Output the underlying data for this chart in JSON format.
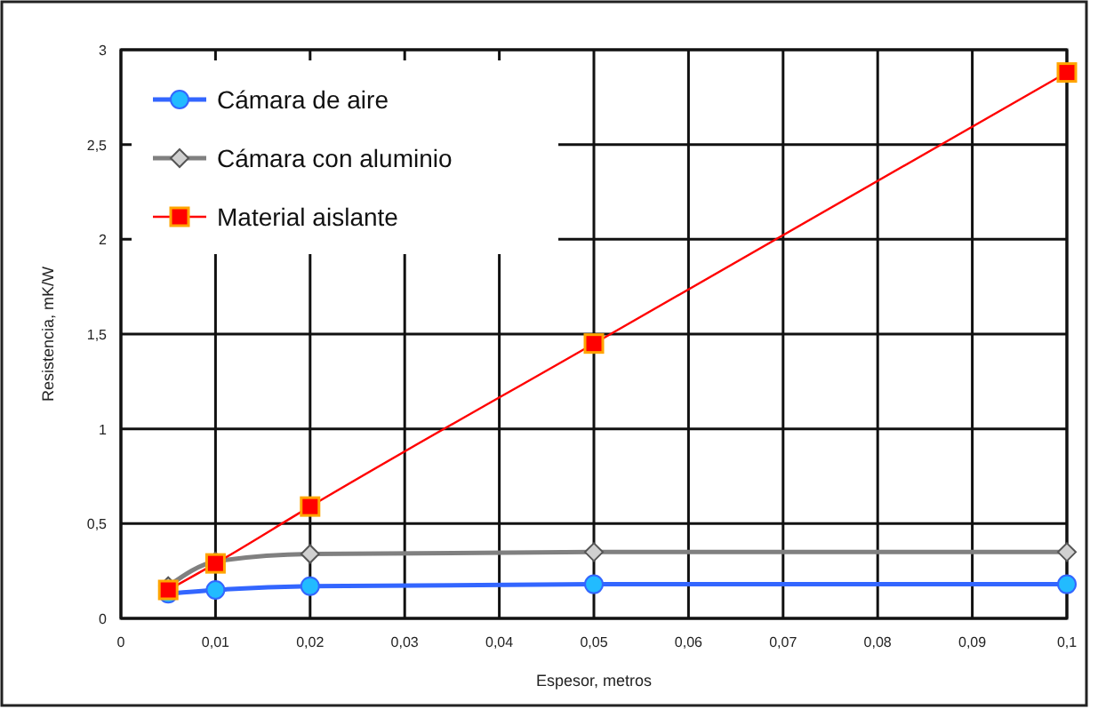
{
  "chart_data": {
    "type": "line",
    "xlabel": "Espesor, metros",
    "ylabel": "Resistencia, mK/W",
    "xlim": [
      0,
      0.1
    ],
    "ylim": [
      0,
      3
    ],
    "xticks": [
      0,
      {
        "value": 0.01,
        "label": "0,01"
      },
      {
        "value": 0.02,
        "label": "0,02"
      },
      {
        "value": 0.03,
        "label": "0,03"
      },
      {
        "value": 0.04,
        "label": "0,04"
      },
      {
        "value": 0.05,
        "label": "0,05"
      },
      {
        "value": 0.06,
        "label": "0,06"
      },
      {
        "value": 0.07,
        "label": "0,07"
      },
      {
        "value": 0.08,
        "label": "0,08"
      },
      {
        "value": 0.09,
        "label": "0,09"
      },
      {
        "value": 0.1,
        "label": "0,1"
      }
    ],
    "yticks": [
      0,
      {
        "value": 0.5,
        "label": "0,5"
      },
      1,
      {
        "value": 1.5,
        "label": "1,5"
      },
      2,
      {
        "value": 2.5,
        "label": "2,5"
      },
      3
    ],
    "grid": true,
    "legend": "top left",
    "x": [
      0.005,
      0.01,
      0.02,
      0.05,
      0.1
    ],
    "series": [
      {
        "name": "Cámara de aire",
        "color": "#3366ff",
        "marker": "circle",
        "values": [
          0.13,
          0.15,
          0.17,
          0.18,
          0.18
        ]
      },
      {
        "name": "Cámara con aluminio",
        "color": "#808080",
        "marker": "diamond",
        "values": [
          0.17,
          0.3,
          0.34,
          0.35,
          0.35
        ]
      },
      {
        "name": "Material aislante",
        "color": "#ff0000",
        "marker": "square",
        "values": [
          0.15,
          0.29,
          0.59,
          1.45,
          2.88
        ]
      }
    ]
  }
}
